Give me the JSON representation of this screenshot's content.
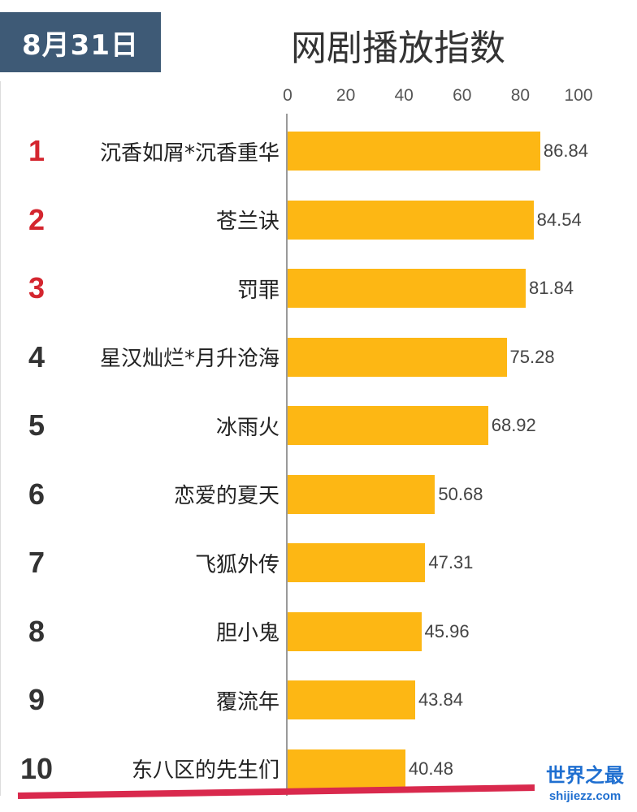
{
  "header": {
    "date": "8月31日",
    "title": "网剧播放指数"
  },
  "colors": {
    "bar": "#fdb714",
    "rank_top3": "#d4262f",
    "rank_other": "#333333",
    "badge_bg": "#3e5a76"
  },
  "chart_data": {
    "type": "bar",
    "orientation": "horizontal",
    "title": "网剧播放指数",
    "xlim": [
      0,
      100
    ],
    "x_ticks": [
      "0",
      "20",
      "40",
      "60",
      "80",
      "100"
    ],
    "ranks": [
      "1",
      "2",
      "3",
      "4",
      "5",
      "6",
      "7",
      "8",
      "9",
      "10"
    ],
    "categories": [
      "沉香如屑*沉香重华",
      "苍兰诀",
      "罚罪",
      "星汉灿烂*月升沧海",
      "冰雨火",
      "恋爱的夏天",
      "飞狐外传",
      "胆小鬼",
      "覆流年",
      "东八区的先生们"
    ],
    "values": [
      86.84,
      84.54,
      81.84,
      75.28,
      68.92,
      50.68,
      47.31,
      45.96,
      43.84,
      40.48
    ],
    "value_labels": [
      "86.84",
      "84.54",
      "81.84",
      "75.28",
      "68.92",
      "50.68",
      "47.31",
      "45.96",
      "43.84",
      "40.48"
    ]
  },
  "watermark": {
    "name": "世界之最",
    "url": "shijiezz.com"
  }
}
